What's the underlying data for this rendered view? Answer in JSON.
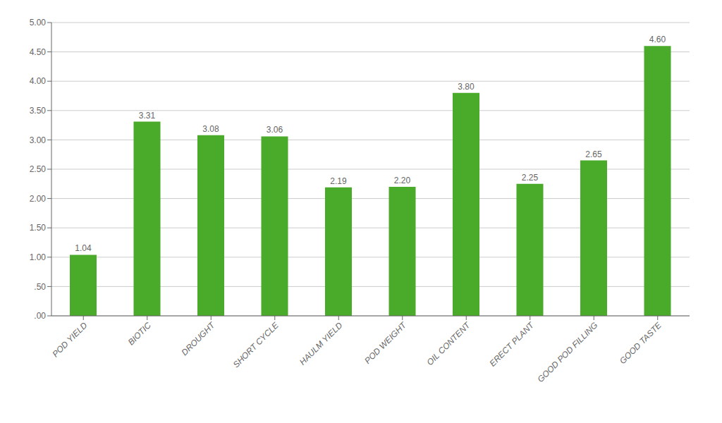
{
  "chart_data": {
    "type": "bar",
    "categories": [
      "POD YIELD",
      "BIOTIC",
      "DROUGHT",
      "SHORT CYCLE",
      "HAULM YIELD",
      "POD WEIGHT",
      "OIL CONTENT",
      "ERECT PLANT",
      "GOOD POD FILLING",
      "GOOD TASTE"
    ],
    "values": [
      1.04,
      3.31,
      3.08,
      3.06,
      2.19,
      2.2,
      3.8,
      2.25,
      2.65,
      4.6
    ],
    "value_labels": [
      "1.04",
      "3.31",
      "3.08",
      "3.06",
      "2.19",
      "2.20",
      "3.80",
      "2.25",
      "2.65",
      "4.60"
    ],
    "data_labels": true,
    "color": "#4aaa2a",
    "ylim": [
      0,
      5.0
    ],
    "yticks": [
      {
        "value": 0.0,
        "label": ".00"
      },
      {
        "value": 0.5,
        "label": ".50"
      },
      {
        "value": 1.0,
        "label": "1.00"
      },
      {
        "value": 1.5,
        "label": "1.50"
      },
      {
        "value": 2.0,
        "label": "2.00"
      },
      {
        "value": 2.5,
        "label": "2.50"
      },
      {
        "value": 3.0,
        "label": "3.00"
      },
      {
        "value": 3.5,
        "label": "3.50"
      },
      {
        "value": 4.0,
        "label": "4.00"
      },
      {
        "value": 4.5,
        "label": "4.50"
      },
      {
        "value": 5.0,
        "label": "5.00"
      }
    ],
    "grid": true
  }
}
